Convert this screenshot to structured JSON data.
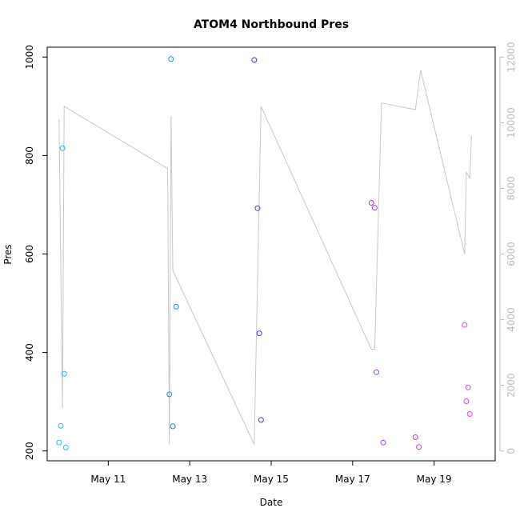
{
  "chart_data": {
    "type": "scatter",
    "title": "ATOM4 Northbound Pres",
    "xlabel": "Date",
    "ylabel": "Pres",
    "xlim": [
      "2024-05-09T12:00",
      "2024-05-20T12:00"
    ],
    "x_ticks": [
      {
        "x": "2024-05-11T00:00",
        "label": "May 11"
      },
      {
        "x": "2024-05-13T00:00",
        "label": "May 13"
      },
      {
        "x": "2024-05-15T00:00",
        "label": "May 15"
      },
      {
        "x": "2024-05-17T00:00",
        "label": "May 17"
      },
      {
        "x": "2024-05-19T00:00",
        "label": "May 19"
      }
    ],
    "ylim": [
      180,
      1020
    ],
    "y_ticks": [
      200,
      400,
      600,
      800,
      1000
    ],
    "y2lim": [
      -300,
      12300
    ],
    "y2_ticks": [
      0,
      2000,
      4000,
      6000,
      8000,
      10000,
      12000
    ],
    "grid": false,
    "points": [
      {
        "x": "2024-05-09T19:00",
        "y": 217,
        "color": "#29b6f6"
      },
      {
        "x": "2024-05-09T20:00",
        "y": 251,
        "color": "#29b6f6"
      },
      {
        "x": "2024-05-09T21:00",
        "y": 815,
        "color": "#29b6f6"
      },
      {
        "x": "2024-05-09T22:00",
        "y": 357,
        "color": "#29b6f6"
      },
      {
        "x": "2024-05-09T23:00",
        "y": 207,
        "color": "#29b6f6"
      },
      {
        "x": "2024-05-12T12:00",
        "y": 315,
        "color": "#1e88e5"
      },
      {
        "x": "2024-05-12T13:00",
        "y": 996,
        "color": "#1e88e5"
      },
      {
        "x": "2024-05-12T14:00",
        "y": 250,
        "color": "#1e88e5"
      },
      {
        "x": "2024-05-12T16:00",
        "y": 493,
        "color": "#1e88e5"
      },
      {
        "x": "2024-05-14T14:00",
        "y": 994,
        "color": "#3d3de0"
      },
      {
        "x": "2024-05-14T16:00",
        "y": 693,
        "color": "#3d3de0"
      },
      {
        "x": "2024-05-14T17:00",
        "y": 439,
        "color": "#3d3de0"
      },
      {
        "x": "2024-05-14T18:00",
        "y": 263,
        "color": "#3d3de0"
      },
      {
        "x": "2024-05-17T11:00",
        "y": 704,
        "color": "#9b3de0"
      },
      {
        "x": "2024-05-17T13:00",
        "y": 694,
        "color": "#9b3de0"
      },
      {
        "x": "2024-05-17T14:00",
        "y": 360,
        "color": "#9b3de0"
      },
      {
        "x": "2024-05-17T18:00",
        "y": 217,
        "color": "#9b3de0"
      },
      {
        "x": "2024-05-18T13:00",
        "y": 228,
        "color": "#c83dc8"
      },
      {
        "x": "2024-05-18T15:00",
        "y": 208,
        "color": "#c83dc8"
      },
      {
        "x": "2024-05-19T18:00",
        "y": 456,
        "color": "#e040e0"
      },
      {
        "x": "2024-05-19T19:00",
        "y": 301,
        "color": "#e040e0"
      },
      {
        "x": "2024-05-19T20:00",
        "y": 329,
        "color": "#e040e0"
      },
      {
        "x": "2024-05-19T21:00",
        "y": 275,
        "color": "#e040e0"
      }
    ],
    "secondary_line": {
      "axis": "right",
      "color": "#c8c8c8",
      "x": [
        "2024-05-09T19:00",
        "2024-05-09T21:00",
        "2024-05-09T22:00",
        "2024-05-12T11:00",
        "2024-05-12T12:00",
        "2024-05-12T13:00",
        "2024-05-12T14:00",
        "2024-05-14T14:00",
        "2024-05-14T18:00",
        "2024-05-17T11:00",
        "2024-05-17T13:00",
        "2024-05-17T17:00",
        "2024-05-18T13:00",
        "2024-05-18T16:00",
        "2024-05-19T18:00",
        "2024-05-19T19:00",
        "2024-05-19T21:00",
        "2024-05-19T22:00"
      ],
      "y": [
        10100,
        1300,
        10500,
        8600,
        200,
        10200,
        5500,
        200,
        10500,
        3100,
        3100,
        10600,
        10400,
        11600,
        6000,
        8500,
        8300,
        9600
      ]
    }
  }
}
